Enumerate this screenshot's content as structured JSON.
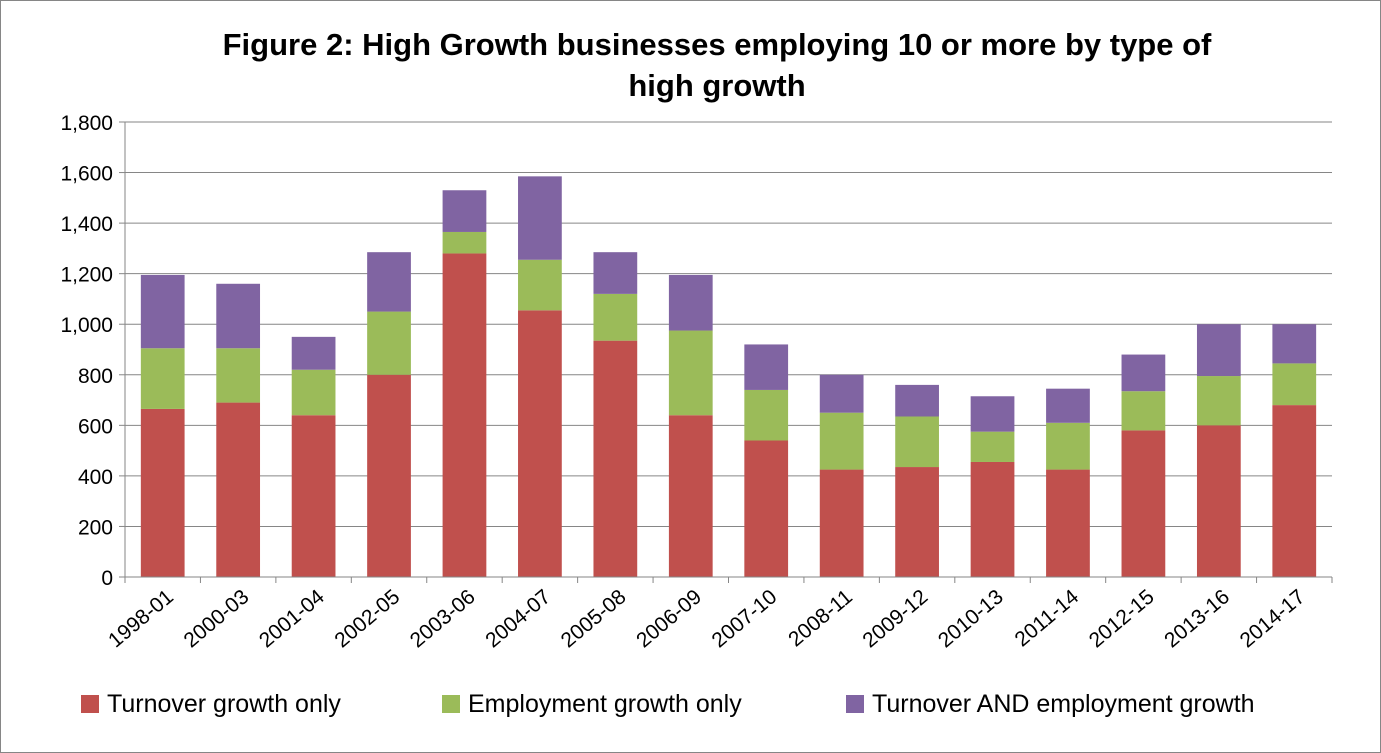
{
  "chart_data": {
    "type": "bar",
    "stacked": true,
    "title_lines": [
      "Figure 2: High Growth businesses employing 10 or more by type of",
      "high growth"
    ],
    "xlabel": "",
    "ylabel": "",
    "ylim": [
      0,
      1800
    ],
    "ytick_values": [
      0,
      200,
      400,
      600,
      800,
      1000,
      1200,
      1400,
      1600,
      1800
    ],
    "ytick_labels": [
      "0",
      "200",
      "400",
      "600",
      "800",
      "1,000",
      "1,200",
      "1,400",
      "1,600",
      "1,800"
    ],
    "grid": true,
    "legend_position": "bottom",
    "categories": [
      "1998-01",
      "2000-03",
      "2001-04",
      "2002-05",
      "2003-06",
      "2004-07",
      "2005-08",
      "2006-09",
      "2007-10",
      "2008-11",
      "2009-12",
      "2010-13",
      "2011-14",
      "2012-15",
      "2013-16",
      "2014-17"
    ],
    "series": [
      {
        "name": "Turnover growth only",
        "color": "#c0504d",
        "values": [
          665,
          690,
          640,
          800,
          1280,
          1055,
          935,
          640,
          540,
          425,
          435,
          455,
          425,
          580,
          600,
          680
        ]
      },
      {
        "name": "Employment growth only",
        "color": "#9bbb59",
        "values": [
          240,
          215,
          180,
          250,
          85,
          200,
          185,
          335,
          200,
          225,
          200,
          120,
          185,
          155,
          195,
          165
        ]
      },
      {
        "name": "Turnover AND employment growth",
        "color": "#8064a2",
        "values": [
          290,
          255,
          130,
          235,
          165,
          330,
          165,
          220,
          180,
          150,
          125,
          140,
          135,
          145,
          205,
          155
        ]
      }
    ]
  }
}
